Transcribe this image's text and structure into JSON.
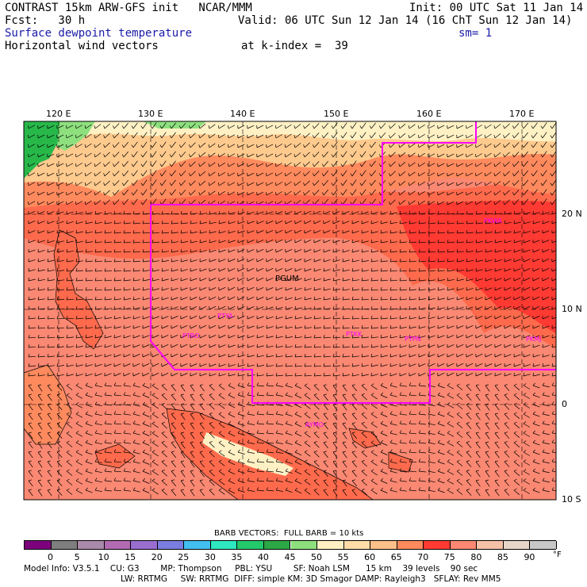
{
  "header": {
    "model_line": "CONTRAST 15km ARW-GFS init   NCAR/MMM",
    "init_line": "Init: 00 UTC Sat 11 Jan 14",
    "fcst_line": "Fcst:   30 h",
    "valid_line": "Valid: 06 UTC Sun 12 Jan 14 (16 ChT Sun 12 Jan 14)",
    "field1": "Surface dewpoint temperature",
    "sm": "sm= 1",
    "field2": "Horizontal wind vectors",
    "kindex": "at k-index =  39"
  },
  "map": {
    "lon_labels": [
      "120 E",
      "130 E",
      "140 E",
      "150 E",
      "160 E",
      "170 E"
    ],
    "lat_labels": [
      "20 N",
      "10 N",
      "0",
      "10 S"
    ],
    "station_labels": [
      "PGUM",
      "PTYA",
      "PTRO",
      "PTKK",
      "PTPN",
      "PKMJ",
      "PKWA",
      "AYMO"
    ],
    "colors": {
      "green_dark": "#28b84a",
      "green_light": "#8ee07e",
      "cream": "#fff1c4",
      "light_orange": "#ffca8e",
      "orange": "#ff8a5e",
      "red_orange": "#ff6a4c",
      "red": "#ff3a32",
      "salmon": "#fa8872",
      "boundary": "#ff00ff",
      "sea": "#ffb092"
    }
  },
  "barb_caption": "BARB VECTORS:  FULL BARB = 10 kts",
  "colorbar": {
    "labels": [
      "0",
      "5",
      "10",
      "15",
      "20",
      "25",
      "30",
      "35",
      "40",
      "45",
      "50",
      "55",
      "60",
      "65",
      "70",
      "75",
      "80",
      "85",
      "90"
    ],
    "unit": "°F",
    "colors": [
      "#7d007d",
      "#7f7f7f",
      "#aa8aaa",
      "#b26bb2",
      "#9a6ecf",
      "#7b7ee0",
      "#42bff0",
      "#2ee8c0",
      "#23c96b",
      "#2ca847",
      "#8ee07e",
      "#fff1c4",
      "#ffdca8",
      "#ffc08a",
      "#ff8a5e",
      "#ff3a32",
      "#fa8872",
      "#f6c1a6",
      "#e8d6c8",
      "#c8c8c8"
    ]
  },
  "model_info": {
    "line1": "Model Info: V3.5.1    CU: G3        MP: Thompson     PBL: YSU        SF: Noah LSM      15 km    39 levels    90 sec",
    "line2": "LW: RRTMG     SW: RRTMG  DIFF: simple KM: 3D Smagor DAMP: Rayleigh3   SFLAY: Rev MM5"
  }
}
